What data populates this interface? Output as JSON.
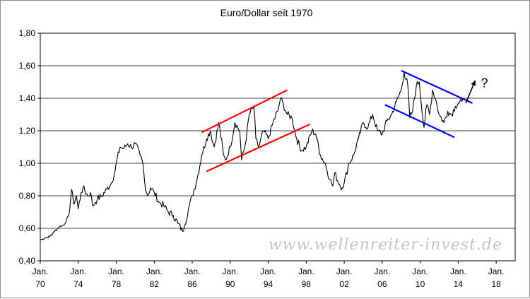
{
  "chart_data": {
    "type": "line",
    "title": "Euro/Dollar seit 1970",
    "watermark": "www.wellenreiter-invest.de",
    "xlabel": "",
    "ylabel": "",
    "xlim": [
      1970,
      2020
    ],
    "ylim": [
      0.4,
      1.8
    ],
    "y_ticks": [
      "0,40",
      "0,60",
      "0,80",
      "1,00",
      "1,20",
      "1,40",
      "1,60",
      "1,80"
    ],
    "x_ticks": [
      {
        "month": "Jan.",
        "year": "70"
      },
      {
        "month": "Jan.",
        "year": "74"
      },
      {
        "month": "Jan.",
        "year": "78"
      },
      {
        "month": "Jan.",
        "year": "82"
      },
      {
        "month": "Jan.",
        "year": "86"
      },
      {
        "month": "Jan.",
        "year": "90"
      },
      {
        "month": "Jan.",
        "year": "94"
      },
      {
        "month": "Jan.",
        "year": "98"
      },
      {
        "month": "Jan.",
        "year": "02"
      },
      {
        "month": "Jan.",
        "year": "06"
      },
      {
        "month": "Jan.",
        "year": "10"
      },
      {
        "month": "Jan.",
        "year": "14"
      },
      {
        "month": "Jan.",
        "year": "18"
      }
    ],
    "grid": "horizontal",
    "series": [
      {
        "color": "#000000",
        "x": [
          1970.0,
          1970.5,
          1971.0,
          1971.5,
          1972.0,
          1972.5,
          1973.0,
          1973.3,
          1973.5,
          1973.8,
          1974.0,
          1974.3,
          1974.5,
          1975.0,
          1975.3,
          1975.5,
          1975.8,
          1976.0,
          1976.5,
          1977.0,
          1977.5,
          1977.9,
          1978.0,
          1978.4,
          1978.8,
          1979.2,
          1979.6,
          1980.0,
          1980.5,
          1980.8,
          1981.0,
          1981.3,
          1981.6,
          1982.0,
          1982.5,
          1983.0,
          1983.5,
          1984.0,
          1984.5,
          1985.0,
          1985.2,
          1985.6,
          1986.0,
          1986.5,
          1987.0,
          1987.5,
          1987.9,
          1988.3,
          1988.8,
          1989.3,
          1989.5,
          1990.0,
          1990.5,
          1991.0,
          1991.2,
          1991.6,
          1992.0,
          1992.5,
          1992.7,
          1993.0,
          1993.5,
          1994.0,
          1994.5,
          1995.0,
          1995.3,
          1995.6,
          1996.0,
          1996.5,
          1997.0,
          1997.5,
          1998.0,
          1998.6,
          1999.0,
          1999.5,
          2000.0,
          2000.5,
          2000.8,
          2001.0,
          2001.5,
          2001.8,
          2002.0,
          2002.5,
          2003.0,
          2003.5,
          2004.0,
          2004.5,
          2005.0,
          2005.5,
          2006.0,
          2006.5,
          2007.0,
          2007.5,
          2008.0,
          2008.3,
          2008.7,
          2008.9,
          2009.2,
          2009.6,
          2009.9,
          2010.4,
          2010.7,
          2011.0,
          2011.3,
          2011.7,
          2012.0,
          2012.5,
          2012.9,
          2013.3,
          2013.7,
          2014.0,
          2014.4,
          2014.6
        ],
        "y": [
          0.53,
          0.54,
          0.55,
          0.58,
          0.61,
          0.62,
          0.68,
          0.84,
          0.75,
          0.8,
          0.72,
          0.82,
          0.85,
          0.8,
          0.82,
          0.74,
          0.76,
          0.78,
          0.8,
          0.84,
          0.88,
          0.96,
          1.0,
          1.1,
          1.09,
          1.12,
          1.1,
          1.12,
          1.05,
          1.0,
          0.88,
          0.8,
          0.85,
          0.82,
          0.76,
          0.74,
          0.7,
          0.68,
          0.63,
          0.58,
          0.62,
          0.72,
          0.8,
          0.9,
          1.05,
          1.15,
          1.2,
          1.1,
          1.25,
          1.05,
          1.02,
          1.1,
          1.25,
          1.2,
          1.02,
          1.12,
          1.3,
          1.35,
          1.15,
          1.1,
          1.2,
          1.15,
          1.25,
          1.32,
          1.4,
          1.36,
          1.3,
          1.28,
          1.15,
          1.08,
          1.1,
          1.2,
          1.18,
          1.05,
          1.0,
          0.9,
          0.86,
          0.94,
          0.87,
          0.85,
          0.88,
          1.0,
          1.05,
          1.15,
          1.25,
          1.22,
          1.3,
          1.2,
          1.18,
          1.26,
          1.3,
          1.38,
          1.45,
          1.56,
          1.48,
          1.28,
          1.32,
          1.48,
          1.5,
          1.22,
          1.36,
          1.3,
          1.45,
          1.38,
          1.3,
          1.25,
          1.32,
          1.3,
          1.35,
          1.37,
          1.38,
          1.39
        ]
      }
    ],
    "annotations": {
      "red_channel": {
        "color": "#ff0000",
        "upper": [
          [
            1987.0,
            1.19
          ],
          [
            1996.0,
            1.45
          ]
        ],
        "lower": [
          [
            1987.5,
            0.95
          ],
          [
            1998.4,
            1.24
          ]
        ]
      },
      "blue_channel": {
        "color": "#0000ff",
        "upper": [
          [
            2008.0,
            1.57
          ],
          [
            2015.5,
            1.37
          ]
        ],
        "lower": [
          [
            2006.3,
            1.36
          ],
          [
            2013.6,
            1.16
          ]
        ]
      },
      "arrow": {
        "color": "#000000",
        "from": [
          2014.8,
          1.37
        ],
        "to": [
          2015.8,
          1.51
        ],
        "label": "?"
      }
    }
  }
}
